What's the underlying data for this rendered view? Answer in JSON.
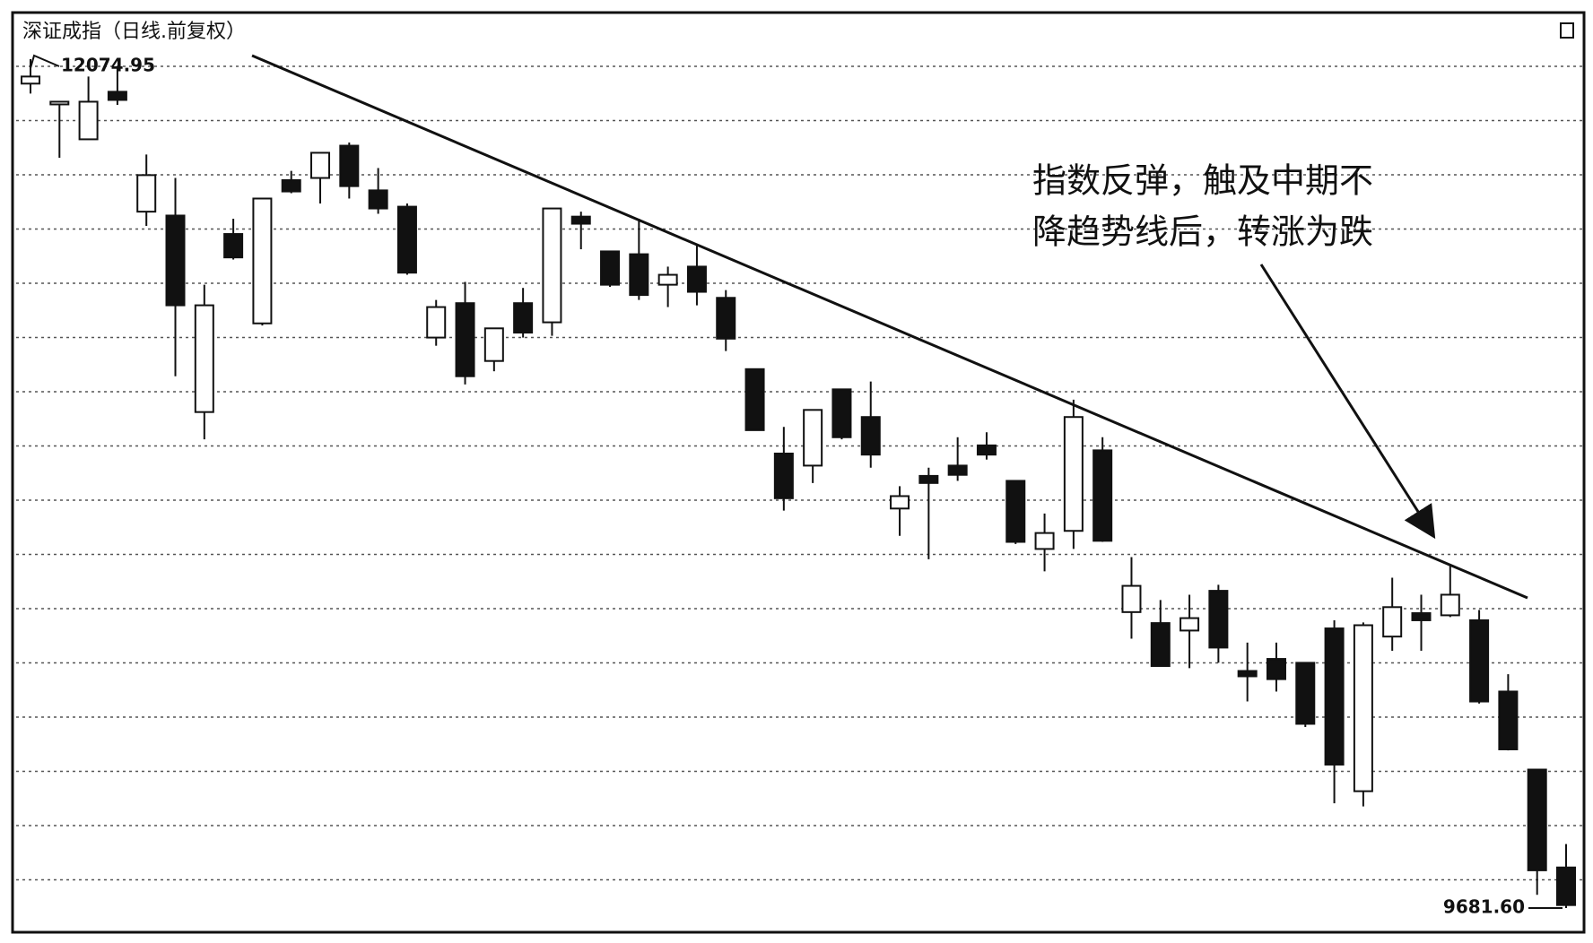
{
  "chart_data": {
    "type": "candlestick",
    "title": "深证成指（日线.前复权）",
    "annotation": [
      "指数反弹，触及中期不",
      "降趋势线后，转涨为跌"
    ],
    "high_label": "12074.95",
    "low_label": "9681.60",
    "up_color": "#ffffff",
    "down_color": "#111111",
    "open": [
      12006,
      11955,
      11849,
      11983,
      11645,
      11634,
      11080,
      11582,
      11330,
      11734,
      11740,
      11831,
      11705,
      11659,
      11290,
      11387,
      11224,
      11387,
      11333,
      11631,
      11533,
      11525,
      11439,
      11490,
      11402,
      11201,
      10963,
      10929,
      11144,
      11066,
      10808,
      10900,
      10929,
      10986,
      10886,
      10694,
      10745,
      10972,
      10516,
      10485,
      10464,
      10576,
      10350,
      10384,
      10373,
      10470,
      10011,
      10447,
      10513,
      10507,
      10493,
      10292,
      10072,
      9796
    ],
    "high": [
      12074.95,
      11955,
      12026,
      12055,
      11806,
      11740,
      11439,
      11625,
      11682,
      11760,
      11811,
      11840,
      11768,
      11668,
      11396,
      11447,
      11316,
      11430,
      11654,
      11645,
      11533,
      11625,
      11490,
      11553,
      11424,
      11201,
      11038,
      11086,
      11144,
      11166,
      10871,
      10923,
      11009,
      11023,
      10886,
      10794,
      11115,
      11009,
      10671,
      10550,
      10565,
      10593,
      10430,
      10430,
      10373,
      10493,
      10487,
      10613,
      10565,
      10648,
      10522,
      10341,
      10072,
      9862
    ],
    "low": [
      11978,
      11797,
      11849,
      11946,
      11605,
      11181,
      11003,
      11510,
      11324,
      11697,
      11668,
      11682,
      11639,
      11467,
      11267,
      11158,
      11195,
      11290,
      11295,
      11539,
      11433,
      11396,
      11376,
      11381,
      11252,
      11029,
      10802,
      10880,
      11003,
      10923,
      10731,
      10665,
      10886,
      10946,
      10708,
      10631,
      10694,
      10714,
      10441,
      10364,
      10358,
      10373,
      10264,
      10292,
      10192,
      9977,
      9968,
      10407,
      10407,
      10502,
      10258,
      10126,
      9719,
      9681.6
    ],
    "close": [
      12026,
      11955,
      11955,
      11960,
      11748,
      11381,
      11381,
      11516,
      11682,
      11702,
      11811,
      11717,
      11654,
      11473,
      11376,
      11181,
      11316,
      11304,
      11654,
      11611,
      11439,
      11410,
      11467,
      11419,
      11287,
      11029,
      10837,
      11086,
      11009,
      10960,
      10843,
      10880,
      10903,
      10960,
      10714,
      10739,
      11066,
      10717,
      10590,
      10364,
      10499,
      10416,
      10335,
      10327,
      10201,
      10086,
      10479,
      10530,
      10493,
      10565,
      10264,
      10129,
      9788,
      9690
    ]
  }
}
